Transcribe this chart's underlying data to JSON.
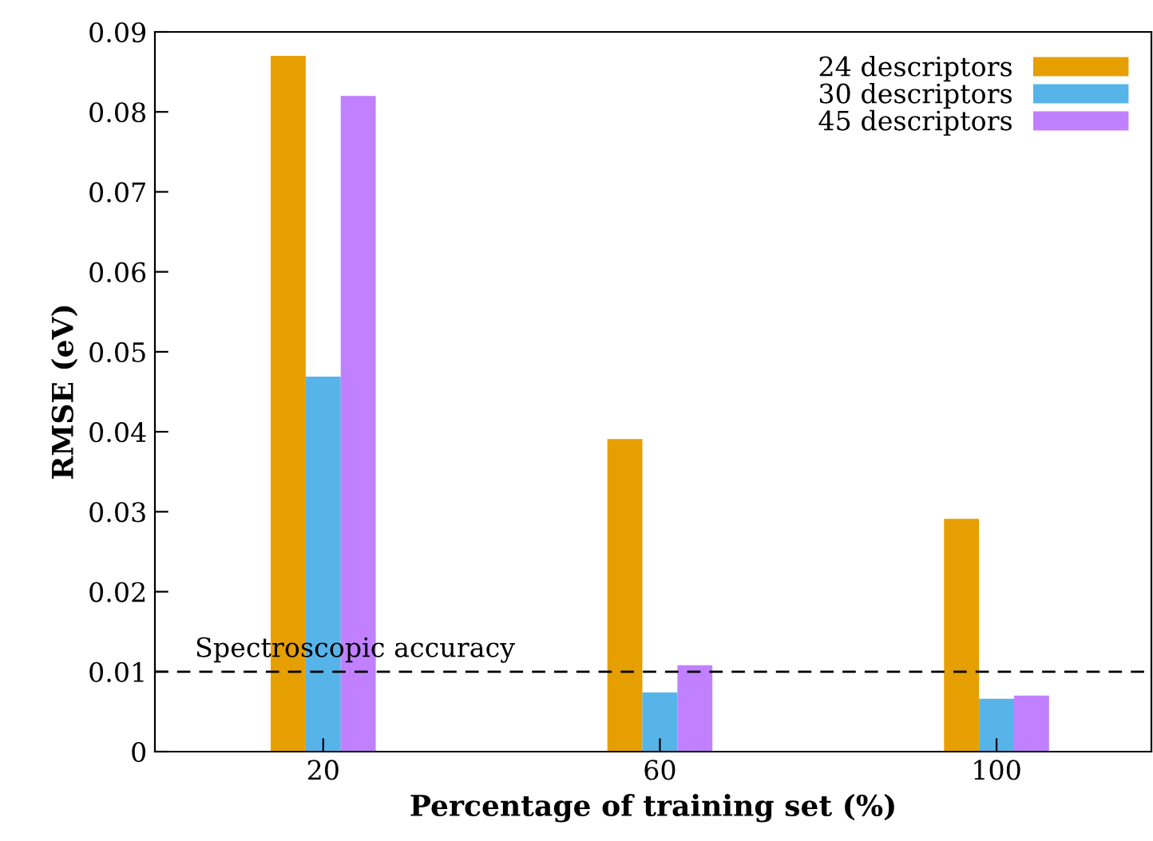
{
  "chart_data": {
    "type": "bar",
    "xlabel": "Percentage of training set (%)",
    "ylabel": "RMSE (eV)",
    "categories": [
      "20",
      "60",
      "100"
    ],
    "series": [
      {
        "name": "24 descriptors",
        "color": "#e69f00",
        "values": [
          0.087,
          0.0391,
          0.0291
        ]
      },
      {
        "name": "30 descriptors",
        "color": "#56b4e9",
        "values": [
          0.0469,
          0.0074,
          0.0066
        ]
      },
      {
        "name": "45 descriptors",
        "color": "#c080ff",
        "values": [
          0.082,
          0.0108,
          0.007
        ]
      }
    ],
    "ylim": [
      0,
      0.09
    ],
    "yticks": [
      0,
      0.01,
      0.02,
      0.03,
      0.04,
      0.05,
      0.06,
      0.07,
      0.08,
      0.09
    ],
    "ref_lines": [
      {
        "axis": "y",
        "value": 0.01,
        "label": "Spectroscopic accuracy",
        "line_style": "dashed",
        "color": "#000000"
      }
    ],
    "legend": "top right",
    "grid": false
  }
}
